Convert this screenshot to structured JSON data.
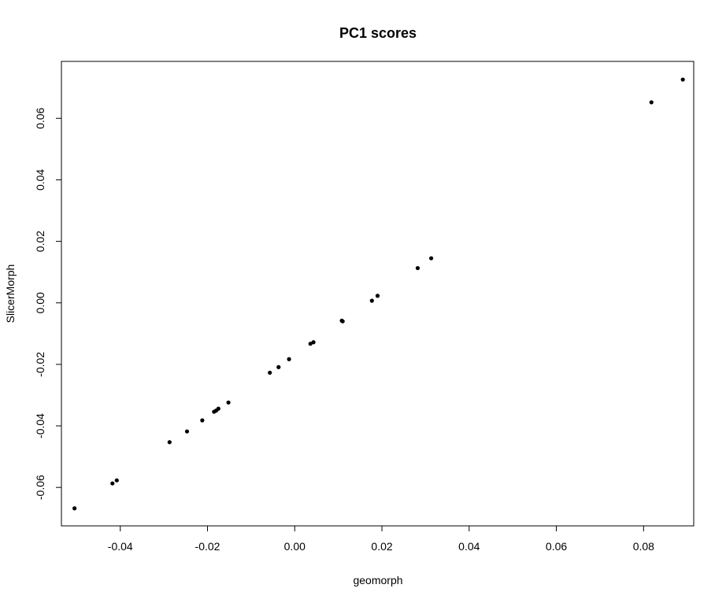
{
  "chart_data": {
    "type": "scatter",
    "title": "PC1 scores",
    "xlabel": "geomorph",
    "ylabel": "SlicerMorph",
    "xlim": [
      -0.0535,
      0.0915
    ],
    "ylim": [
      -0.0725,
      0.0785
    ],
    "xticks": [
      -0.04,
      -0.02,
      0.0,
      0.02,
      0.04,
      0.06,
      0.08
    ],
    "xtick_labels": [
      "-0.04",
      "-0.02",
      "0.00",
      "0.02",
      "0.04",
      "0.06",
      "0.08"
    ],
    "yticks": [
      -0.06,
      -0.04,
      -0.02,
      0.0,
      0.02,
      0.04,
      0.06
    ],
    "ytick_labels": [
      "-0.06",
      "-0.04",
      "-0.02",
      "0.00",
      "0.02",
      "0.04",
      "0.06"
    ],
    "grid": false,
    "point_color": "#000000",
    "points": [
      {
        "x": -0.0505,
        "y": -0.0668
      },
      {
        "x": -0.0418,
        "y": -0.0587
      },
      {
        "x": -0.0408,
        "y": -0.0577
      },
      {
        "x": -0.0287,
        "y": -0.0453
      },
      {
        "x": -0.0247,
        "y": -0.0418
      },
      {
        "x": -0.0212,
        "y": -0.0382
      },
      {
        "x": -0.0185,
        "y": -0.0354
      },
      {
        "x": -0.018,
        "y": -0.035
      },
      {
        "x": -0.0175,
        "y": -0.0344
      },
      {
        "x": -0.0152,
        "y": -0.0324
      },
      {
        "x": -0.0057,
        "y": -0.0227
      },
      {
        "x": -0.0037,
        "y": -0.0209
      },
      {
        "x": -0.0013,
        "y": -0.0183
      },
      {
        "x": 0.0036,
        "y": -0.0133
      },
      {
        "x": 0.0043,
        "y": -0.0128
      },
      {
        "x": 0.0108,
        "y": -0.0058
      },
      {
        "x": 0.011,
        "y": -0.006
      },
      {
        "x": 0.0177,
        "y": 0.0007
      },
      {
        "x": 0.019,
        "y": 0.0023
      },
      {
        "x": 0.0282,
        "y": 0.0113
      },
      {
        "x": 0.0313,
        "y": 0.0145
      },
      {
        "x": 0.0818,
        "y": 0.0652
      },
      {
        "x": 0.089,
        "y": 0.0726
      }
    ]
  }
}
